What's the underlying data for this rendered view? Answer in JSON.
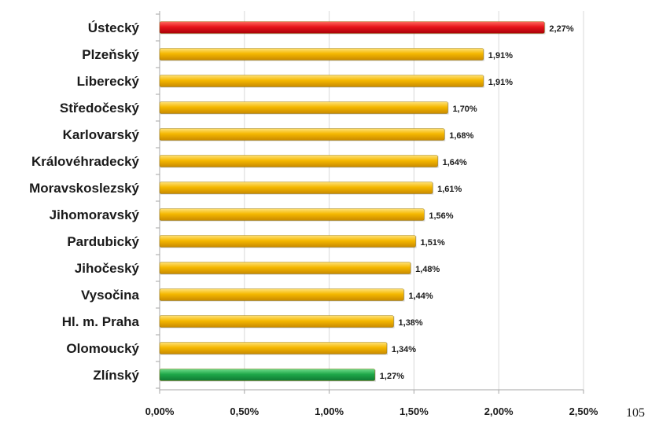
{
  "chart_data": {
    "type": "bar",
    "orientation": "horizontal",
    "categories": [
      "Ústecký",
      "Plzeňský",
      "Liberecký",
      "Středočeský",
      "Karlovarský",
      "Královéhradecký",
      "Moravskoslezský",
      "Jihomoravský",
      "Pardubický",
      "Jihočeský",
      "Vysočina",
      "Hl. m. Praha",
      "Olomoucký",
      "Zlínský"
    ],
    "values": [
      2.27,
      1.91,
      1.91,
      1.7,
      1.68,
      1.64,
      1.61,
      1.56,
      1.51,
      1.48,
      1.44,
      1.38,
      1.34,
      1.27
    ],
    "data_labels": [
      "2,27%",
      "1,91%",
      "1,91%",
      "1,70%",
      "1,68%",
      "1,64%",
      "1,61%",
      "1,56%",
      "1,51%",
      "1,48%",
      "1,44%",
      "1,38%",
      "1,34%",
      "1,27%"
    ],
    "bar_colors": [
      "#e8141b",
      "#f5b800",
      "#f5b800",
      "#f5b800",
      "#f5b800",
      "#f5b800",
      "#f5b800",
      "#f5b800",
      "#f5b800",
      "#f5b800",
      "#f5b800",
      "#f5b800",
      "#f5b800",
      "#1fa84a"
    ],
    "xlim": [
      0,
      2.5
    ],
    "xticks": [
      0,
      0.5,
      1.0,
      1.5,
      2.0,
      2.5
    ],
    "xtick_labels": [
      "0,00%",
      "0,50%",
      "1,00%",
      "1,50%",
      "2,00%",
      "2,50%"
    ],
    "grid": true,
    "legend": "none",
    "title": "",
    "xlabel": "",
    "ylabel": ""
  },
  "page_number": "105"
}
